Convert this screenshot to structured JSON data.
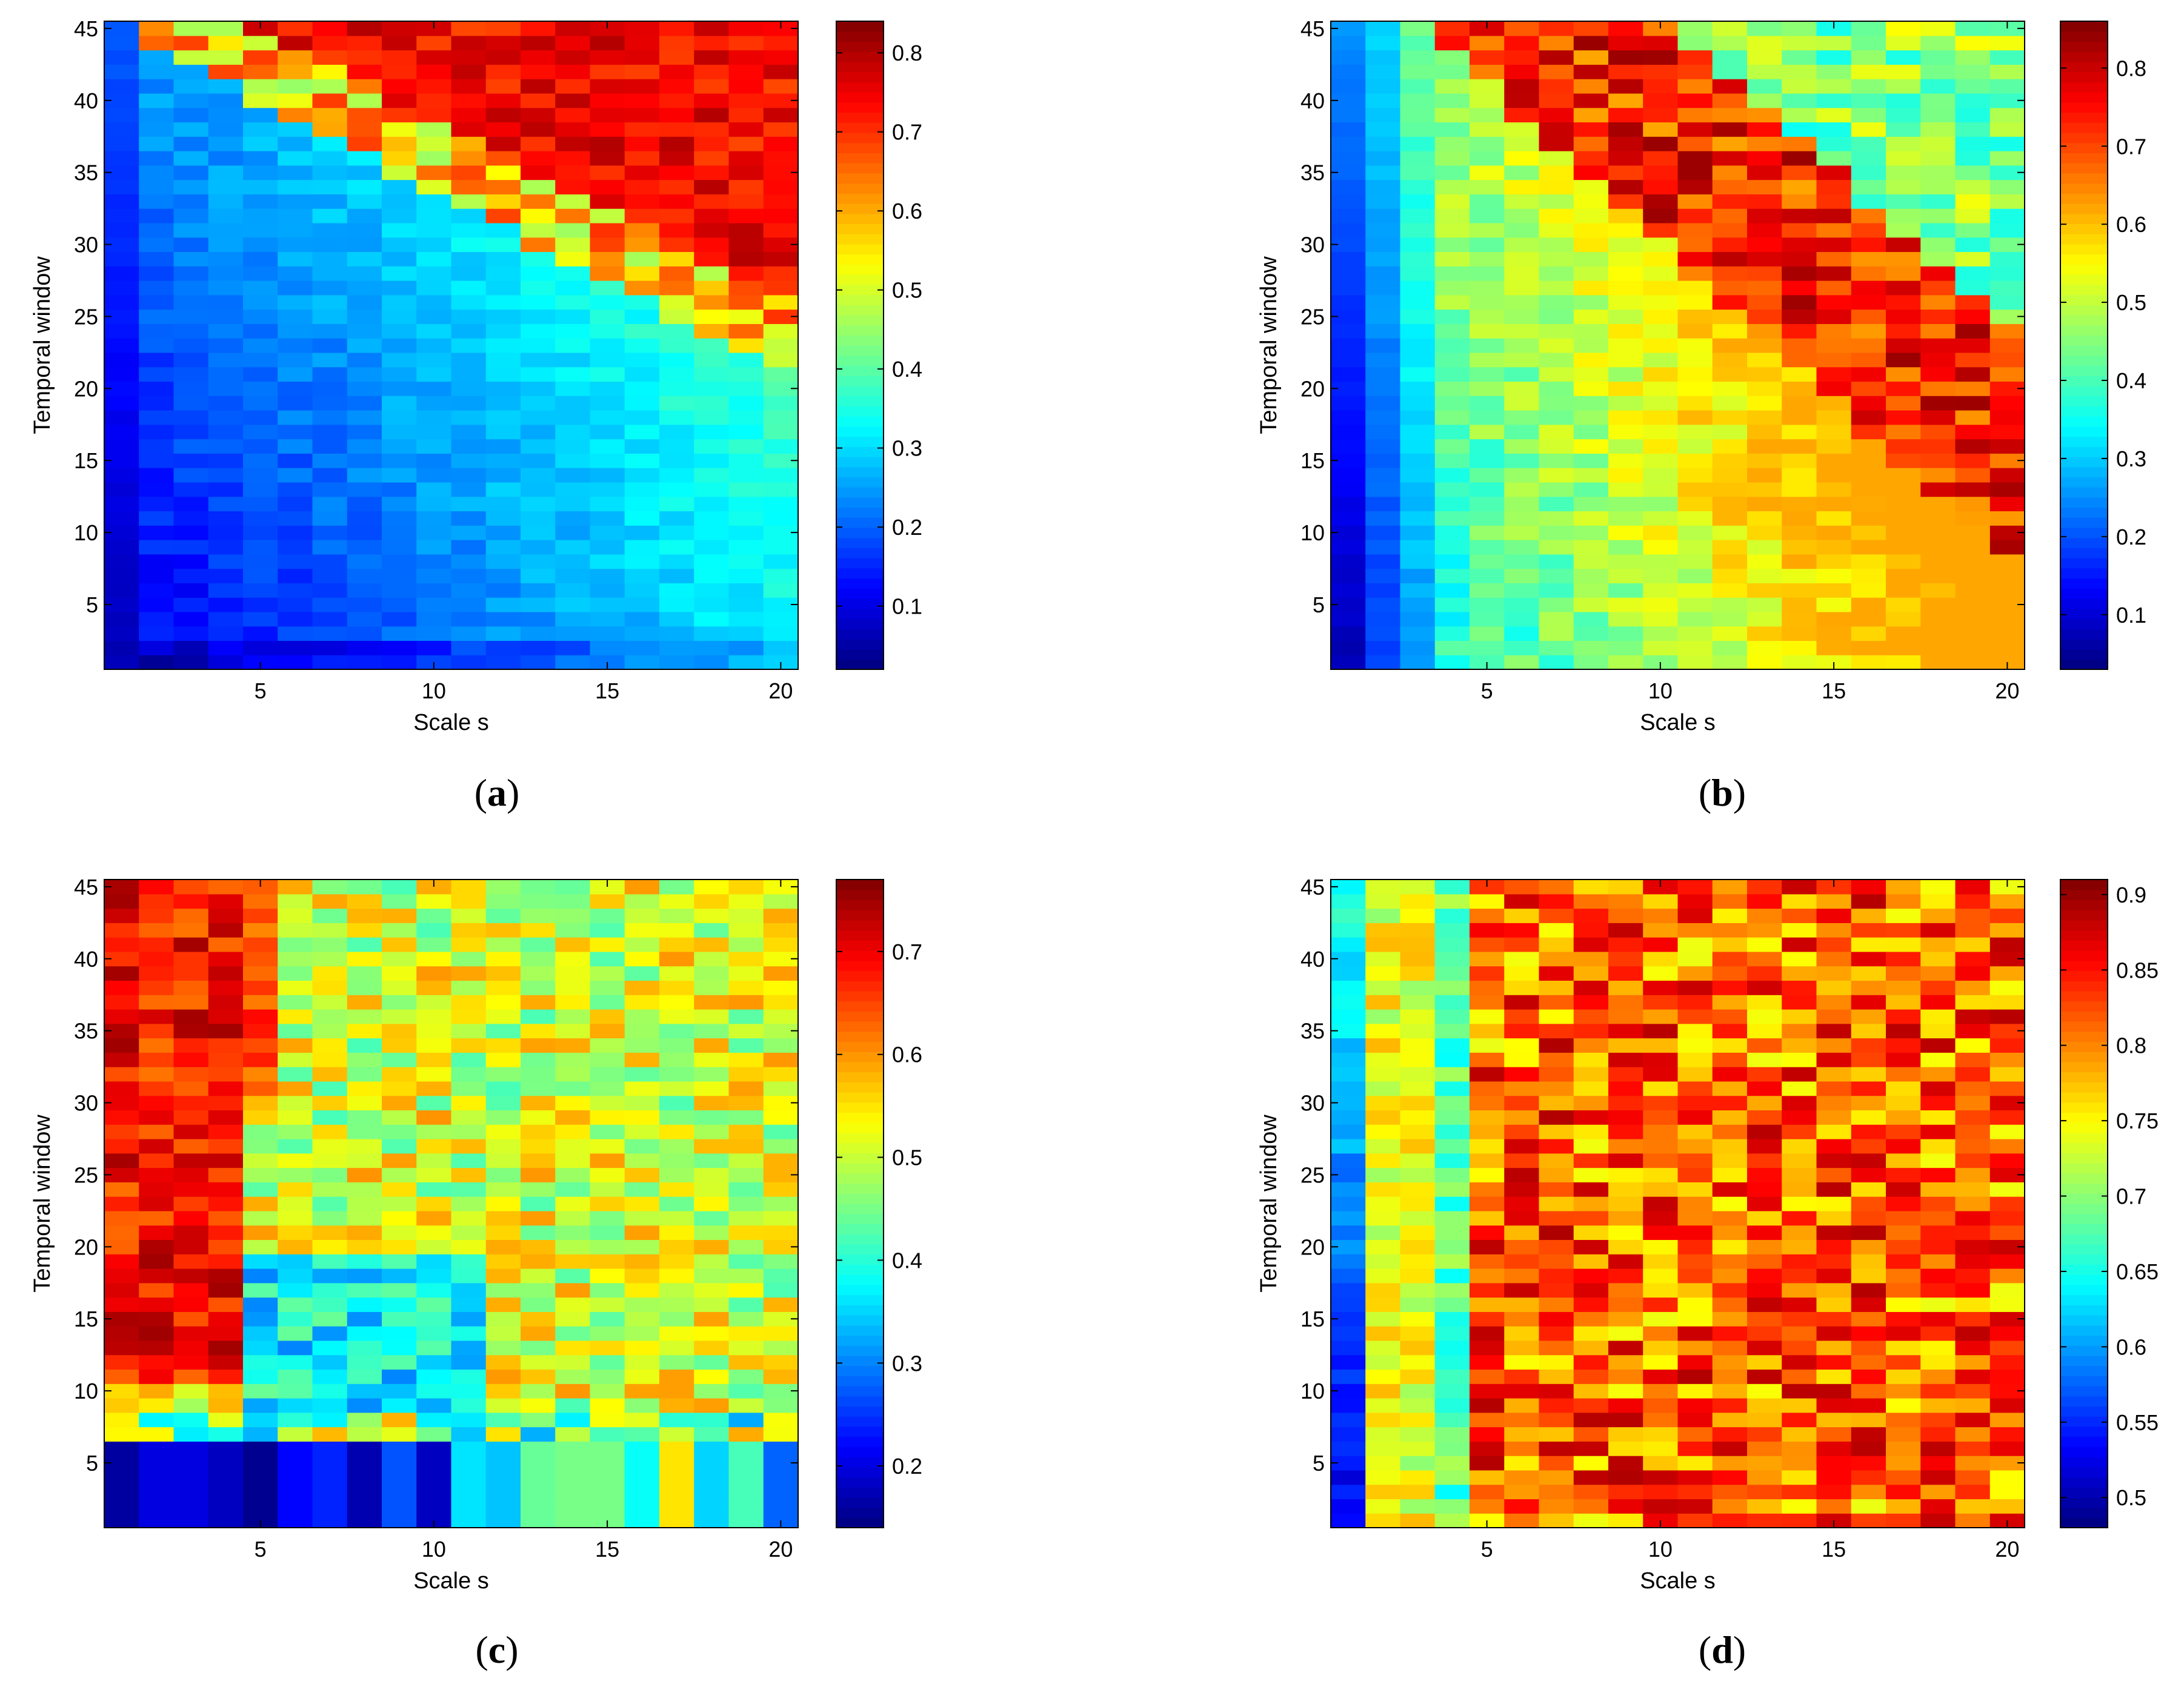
{
  "chart_data": [
    {
      "type": "heatmap",
      "panel_label": "a",
      "xlabel": "Scale s",
      "ylabel": "Temporal window",
      "x_range": [
        1,
        20
      ],
      "y_range": [
        1,
        45
      ],
      "x_ticks": [
        5,
        10,
        15,
        20
      ],
      "y_ticks": [
        5,
        10,
        15,
        20,
        25,
        30,
        35,
        40,
        45
      ],
      "colorbar_range": [
        0.02,
        0.84
      ],
      "colorbar_ticks": [
        0.1,
        0.2,
        0.3,
        0.4,
        0.5,
        0.6,
        0.7,
        0.8
      ],
      "colormap": "jet",
      "pattern": "low values at small scale and short window; high (~0.7-0.8) in the upper-right region above a diagonal boundary"
    },
    {
      "type": "heatmap",
      "panel_label": "b",
      "xlabel": "Scale s",
      "ylabel": "Temporal window",
      "x_range": [
        1,
        20
      ],
      "y_range": [
        1,
        45
      ],
      "x_ticks": [
        5,
        10,
        15,
        20
      ],
      "y_ticks": [
        5,
        10,
        15,
        20,
        25,
        30,
        35,
        40,
        45
      ],
      "colorbar_range": [
        0.03,
        0.86
      ],
      "colorbar_ticks": [
        0.1,
        0.2,
        0.3,
        0.4,
        0.5,
        0.6,
        0.7,
        0.8
      ],
      "colormap": "jet",
      "pattern": "low in first columns; high red band along a diagonal from top-left to lower-right; mid values bottom-right"
    },
    {
      "type": "heatmap",
      "panel_label": "c",
      "xlabel": "Scale s",
      "ylabel": "Temporal window",
      "x_range": [
        1,
        20
      ],
      "y_range": [
        1,
        45
      ],
      "x_ticks": [
        5,
        10,
        15,
        20
      ],
      "y_ticks": [
        5,
        10,
        15,
        20,
        25,
        30,
        35,
        40,
        45
      ],
      "colorbar_range": [
        0.14,
        0.77
      ],
      "colorbar_ticks": [
        0.2,
        0.3,
        0.4,
        0.5,
        0.6,
        0.7
      ],
      "colormap": "jet",
      "pattern": "high (~0.7) for small scales and long windows; mid (~0.5) elsewhere; low vertical stripes for windows below ~7"
    },
    {
      "type": "heatmap",
      "panel_label": "d",
      "xlabel": "Scale s",
      "ylabel": "Temporal window",
      "x_range": [
        1,
        20
      ],
      "y_range": [
        1,
        45
      ],
      "x_ticks": [
        5,
        10,
        15,
        20
      ],
      "y_ticks": [
        5,
        10,
        15,
        20,
        25,
        30,
        35,
        40,
        45
      ],
      "colorbar_range": [
        0.48,
        0.91
      ],
      "colorbar_ticks": [
        0.5,
        0.55,
        0.6,
        0.65,
        0.7,
        0.75,
        0.8,
        0.85,
        0.9
      ],
      "colormap": "jet",
      "pattern": "first column low (~0.5-0.6); remaining area mostly 0.75-0.9 with noisy variation"
    }
  ]
}
